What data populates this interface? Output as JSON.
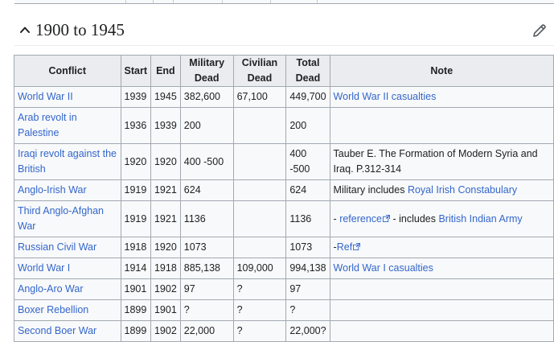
{
  "section": {
    "title": "1900 to 1945"
  },
  "icons": {
    "collapse": "chevron-up-icon",
    "edit": "pencil-icon",
    "external": "external-link-icon"
  },
  "colors": {
    "link": "#3366cc",
    "header_bg": "#eaecf0",
    "cell_bg": "#f8f9fa",
    "border": "#a2a9b1"
  },
  "table": {
    "headers": {
      "conflict": "Conflict",
      "start": "Start",
      "end": "End",
      "military": "Military Dead",
      "civilian": "Civilian Dead",
      "total": "Total Dead",
      "note": "Note"
    },
    "rows": [
      {
        "conflict": "World War II",
        "start": "1939",
        "end": "1945",
        "military": "382,600",
        "civilian": "67,100",
        "total": "449,700",
        "note_pre": "",
        "note_link": "World War II casualties",
        "note_mid": "",
        "note_link2": "",
        "ext": false
      },
      {
        "conflict": "Arab revolt in Palestine",
        "start": "1936",
        "end": "1939",
        "military": "200",
        "civilian": "",
        "total": "200",
        "note_pre": "",
        "note_link": "",
        "note_mid": "",
        "note_link2": "",
        "ext": false
      },
      {
        "conflict": "Iraqi revolt against the British",
        "start": "1920",
        "end": "1920",
        "military": "400 -500",
        "civilian": "",
        "total": "400 -500",
        "note_pre": "Tauber E. The Formation of Modern Syria and Iraq. P.312-314",
        "note_link": "",
        "note_mid": "",
        "note_link2": "",
        "ext": false
      },
      {
        "conflict": "Anglo-Irish War",
        "start": "1919",
        "end": "1921",
        "military": "624",
        "civilian": "",
        "total": "624",
        "note_pre": "Military includes ",
        "note_link": "Royal Irish Constabulary",
        "note_mid": "",
        "note_link2": "",
        "ext": false
      },
      {
        "conflict": "Third Anglo-Afghan War",
        "start": "1919",
        "end": "1921",
        "military": "1136",
        "civilian": "",
        "total": "1136",
        "note_pre": "- ",
        "note_link": "reference",
        "note_mid": " - includes ",
        "note_link2": "British Indian Army",
        "ext": true
      },
      {
        "conflict": "Russian Civil War",
        "start": "1918",
        "end": "1920",
        "military": "1073",
        "civilian": "",
        "total": "1073",
        "note_pre": "-",
        "note_link": "Ref",
        "note_mid": "",
        "note_link2": "",
        "ext": true
      },
      {
        "conflict": "World War I",
        "start": "1914",
        "end": "1918",
        "military": "885,138",
        "civilian": "109,000",
        "total": "994,138",
        "note_pre": "",
        "note_link": "World War I casualties",
        "note_mid": "",
        "note_link2": "",
        "ext": false
      },
      {
        "conflict": "Anglo-Aro War",
        "start": "1901",
        "end": "1902",
        "military": "97",
        "civilian": "?",
        "total": "97",
        "note_pre": "",
        "note_link": "",
        "note_mid": "",
        "note_link2": "",
        "ext": false
      },
      {
        "conflict": "Boxer Rebellion",
        "start": "1899",
        "end": "1901",
        "military": "?",
        "civilian": "?",
        "total": "?",
        "note_pre": "",
        "note_link": "",
        "note_mid": "",
        "note_link2": "",
        "ext": false
      },
      {
        "conflict": "Second Boer War",
        "start": "1899",
        "end": "1902",
        "military": "22,000",
        "civilian": "?",
        "total": "22,000?",
        "note_pre": "",
        "note_link": "",
        "note_mid": "",
        "note_link2": "",
        "ext": false
      }
    ]
  }
}
